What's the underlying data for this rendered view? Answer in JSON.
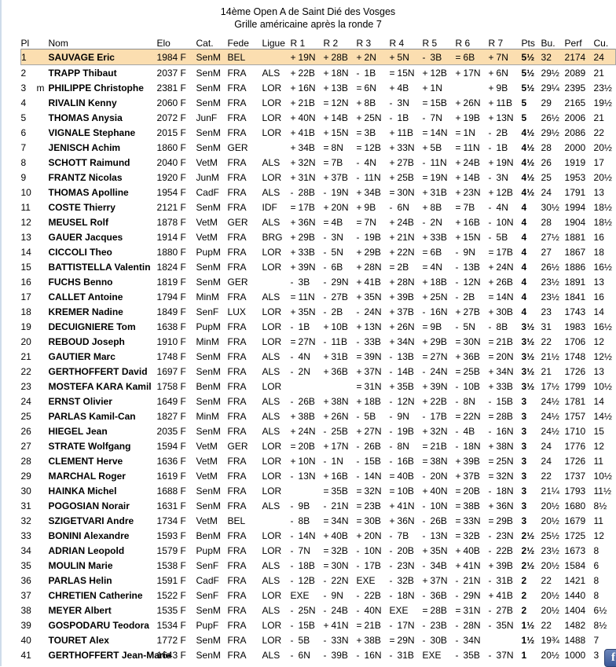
{
  "header": {
    "title_line1": "14ème Open A de Saint Dié des Vosges",
    "title_line2": "Grille américaine après la ronde 7"
  },
  "table": {
    "columns": [
      "Pl",
      "Nom",
      "Elo",
      "Cat.",
      "Fede",
      "Ligue",
      "R 1",
      "R 2",
      "R 3",
      "R 4",
      "R 5",
      "R 6",
      "R 7",
      "Pts",
      "Bu.",
      "Perf",
      "Cu."
    ],
    "highlight_color": "#fbdeb0",
    "rows": [
      {
        "pl": "1",
        "t": "",
        "nom": "SAUVAGE Eric",
        "elo": "1984 F",
        "cat": "SenM",
        "fede": "BEL",
        "ligue": "",
        "r": [
          "+ 19N",
          "+ 28B",
          "+ 2N",
          "+ 5N",
          "- 3B",
          "= 6B",
          "+ 7N"
        ],
        "pts": "5½",
        "bu": "32",
        "perf": "2174",
        "cu": "24",
        "hl": true
      },
      {
        "pl": "2",
        "t": "",
        "nom": "TRAPP Thibaut",
        "elo": "2037 F",
        "cat": "SenM",
        "fede": "FRA",
        "ligue": "ALS",
        "r": [
          "+ 22B",
          "+ 18N",
          "- 1B",
          "= 15N",
          "+ 12B",
          "+ 17N",
          "+ 6N"
        ],
        "pts": "5½",
        "bu": "29½",
        "perf": "2089",
        "cu": "21",
        "hl": false
      },
      {
        "pl": "3",
        "t": "m",
        "nom": "PHILIPPE Christophe",
        "elo": "2381 F",
        "cat": "SenM",
        "fede": "FRA",
        "ligue": "LOR",
        "r": [
          "+ 16N",
          "+ 13B",
          "= 6N",
          "+ 4B",
          "+ 1N",
          "",
          "+ 9B"
        ],
        "pts": "5½",
        "bu": "29¼",
        "perf": "2395",
        "cu": "23½",
        "hl": false
      },
      {
        "pl": "4",
        "t": "",
        "nom": "RIVALIN Kenny",
        "elo": "2060 F",
        "cat": "SenM",
        "fede": "FRA",
        "ligue": "LOR",
        "r": [
          "+ 21B",
          "= 12N",
          "+ 8B",
          "- 3N",
          "= 15B",
          "+ 26N",
          "+ 11B"
        ],
        "pts": "5",
        "bu": "29",
        "perf": "2165",
        "cu": "19½",
        "hl": false
      },
      {
        "pl": "5",
        "t": "",
        "nom": "THOMAS Anysia",
        "elo": "2072 F",
        "cat": "JunF",
        "fede": "FRA",
        "ligue": "LOR",
        "r": [
          "+ 40N",
          "+ 14B",
          "+ 25N",
          "- 1B",
          "- 7N",
          "+ 19B",
          "+ 13N"
        ],
        "pts": "5",
        "bu": "26½",
        "perf": "2006",
        "cu": "21",
        "hl": false
      },
      {
        "pl": "6",
        "t": "",
        "nom": "VIGNALE Stephane",
        "elo": "2015 F",
        "cat": "SenM",
        "fede": "FRA",
        "ligue": "LOR",
        "r": [
          "+ 41B",
          "+ 15N",
          "= 3B",
          "+ 11B",
          "= 14N",
          "= 1N",
          "- 2B"
        ],
        "pts": "4½",
        "bu": "29½",
        "perf": "2086",
        "cu": "22",
        "hl": false
      },
      {
        "pl": "7",
        "t": "",
        "nom": "JENISCH Achim",
        "elo": "1860 F",
        "cat": "SenM",
        "fede": "GER",
        "ligue": "",
        "r": [
          "+ 34B",
          "= 8N",
          "= 12B",
          "+ 33N",
          "+ 5B",
          "= 11N",
          "- 1B"
        ],
        "pts": "4½",
        "bu": "28",
        "perf": "2000",
        "cu": "20½",
        "hl": false
      },
      {
        "pl": "8",
        "t": "",
        "nom": "SCHOTT Raimund",
        "elo": "2040 F",
        "cat": "VetM",
        "fede": "FRA",
        "ligue": "ALS",
        "r": [
          "+ 32N",
          "= 7B",
          "- 4N",
          "+ 27B",
          "- 11N",
          "+ 24B",
          "+ 19N"
        ],
        "pts": "4½",
        "bu": "26",
        "perf": "1919",
        "cu": "17",
        "hl": false
      },
      {
        "pl": "9",
        "t": "",
        "nom": "FRANTZ Nicolas",
        "elo": "1920 F",
        "cat": "JunM",
        "fede": "FRA",
        "ligue": "LOR",
        "r": [
          "+ 31N",
          "+ 37B",
          "- 11N",
          "+ 25B",
          "= 19N",
          "+ 14B",
          "- 3N"
        ],
        "pts": "4½",
        "bu": "25",
        "perf": "1953",
        "cu": "20½",
        "hl": false
      },
      {
        "pl": "10",
        "t": "",
        "nom": "THOMAS Apolline",
        "elo": "1954 F",
        "cat": "CadF",
        "fede": "FRA",
        "ligue": "ALS",
        "r": [
          "- 28B",
          "- 19N",
          "+ 34B",
          "= 30N",
          "+ 31B",
          "+ 23N",
          "+ 12B"
        ],
        "pts": "4½",
        "bu": "24",
        "perf": "1791",
        "cu": "13",
        "hl": false
      },
      {
        "pl": "11",
        "t": "",
        "nom": "COSTE Thierry",
        "elo": "2121 F",
        "cat": "SenM",
        "fede": "FRA",
        "ligue": "IDF",
        "r": [
          "= 17B",
          "+ 20N",
          "+ 9B",
          "- 6N",
          "+ 8B",
          "= 7B",
          "- 4N"
        ],
        "pts": "4",
        "bu": "30½",
        "perf": "1994",
        "cu": "18½",
        "hl": false
      },
      {
        "pl": "12",
        "t": "",
        "nom": "MEUSEL Rolf",
        "elo": "1878 F",
        "cat": "VetM",
        "fede": "GER",
        "ligue": "ALS",
        "r": [
          "+ 36N",
          "= 4B",
          "= 7N",
          "+ 24B",
          "- 2N",
          "+ 16B",
          "- 10N"
        ],
        "pts": "4",
        "bu": "28",
        "perf": "1904",
        "cu": "18½",
        "hl": false
      },
      {
        "pl": "13",
        "t": "",
        "nom": "GAUER Jacques",
        "elo": "1914 F",
        "cat": "VetM",
        "fede": "FRA",
        "ligue": "BRG",
        "r": [
          "+ 29B",
          "- 3N",
          "- 19B",
          "+ 21N",
          "+ 33B",
          "+ 15N",
          "- 5B"
        ],
        "pts": "4",
        "bu": "27½",
        "perf": "1881",
        "cu": "16",
        "hl": false
      },
      {
        "pl": "14",
        "t": "",
        "nom": "CICCOLI Theo",
        "elo": "1880 F",
        "cat": "PupM",
        "fede": "FRA",
        "ligue": "LOR",
        "r": [
          "+ 33B",
          "- 5N",
          "+ 29B",
          "+ 22N",
          "= 6B",
          "- 9N",
          "= 17B"
        ],
        "pts": "4",
        "bu": "27",
        "perf": "1867",
        "cu": "18",
        "hl": false
      },
      {
        "pl": "15",
        "t": "",
        "nom": "BATTISTELLA Valentin",
        "elo": "1824 F",
        "cat": "SenM",
        "fede": "FRA",
        "ligue": "LOR",
        "r": [
          "+ 39N",
          "- 6B",
          "+ 28N",
          "= 2B",
          "= 4N",
          "- 13B",
          "+ 24N"
        ],
        "pts": "4",
        "bu": "26½",
        "perf": "1886",
        "cu": "16½",
        "hl": false
      },
      {
        "pl": "16",
        "t": "",
        "nom": "FUCHS Benno",
        "elo": "1819 F",
        "cat": "SenM",
        "fede": "GER",
        "ligue": "",
        "r": [
          "- 3B",
          "- 29N",
          "+ 41B",
          "+ 28N",
          "+ 18B",
          "- 12N",
          "+ 26B"
        ],
        "pts": "4",
        "bu": "23½",
        "perf": "1891",
        "cu": "13",
        "hl": false
      },
      {
        "pl": "17",
        "t": "",
        "nom": "CALLET Antoine",
        "elo": "1794 F",
        "cat": "MinM",
        "fede": "FRA",
        "ligue": "ALS",
        "r": [
          "= 11N",
          "- 27B",
          "+ 35N",
          "+ 39B",
          "+ 25N",
          "- 2B",
          "= 14N"
        ],
        "pts": "4",
        "bu": "23½",
        "perf": "1841",
        "cu": "16",
        "hl": false
      },
      {
        "pl": "18",
        "t": "",
        "nom": "KREMER Nadine",
        "elo": "1849 F",
        "cat": "SenF",
        "fede": "LUX",
        "ligue": "LOR",
        "r": [
          "+ 35N",
          "- 2B",
          "- 24N",
          "+ 37B",
          "- 16N",
          "+ 27B",
          "+ 30B"
        ],
        "pts": "4",
        "bu": "23",
        "perf": "1743",
        "cu": "14",
        "hl": false
      },
      {
        "pl": "19",
        "t": "",
        "nom": "DECUIGNIERE Tom",
        "elo": "1638 F",
        "cat": "PupM",
        "fede": "FRA",
        "ligue": "LOR",
        "r": [
          "- 1B",
          "+ 10B",
          "+ 13N",
          "+ 26N",
          "= 9B",
          "- 5N",
          "- 8B"
        ],
        "pts": "3½",
        "bu": "31",
        "perf": "1983",
        "cu": "16½",
        "hl": false
      },
      {
        "pl": "20",
        "t": "",
        "nom": "REBOUD Joseph",
        "elo": "1910 F",
        "cat": "MinM",
        "fede": "FRA",
        "ligue": "LOR",
        "r": [
          "= 27N",
          "- 11B",
          "- 33B",
          "+ 34N",
          "+ 29B",
          "= 30N",
          "= 21B"
        ],
        "pts": "3½",
        "bu": "22",
        "perf": "1706",
        "cu": "12",
        "hl": false
      },
      {
        "pl": "21",
        "t": "",
        "nom": "GAUTIER Marc",
        "elo": "1748 F",
        "cat": "SenM",
        "fede": "FRA",
        "ligue": "ALS",
        "r": [
          "- 4N",
          "+ 31B",
          "= 39N",
          "- 13B",
          "= 27N",
          "+ 36B",
          "= 20N"
        ],
        "pts": "3½",
        "bu": "21½",
        "perf": "1748",
        "cu": "12½",
        "hl": false
      },
      {
        "pl": "22",
        "t": "",
        "nom": "GERTHOFFERT David",
        "elo": "1697 F",
        "cat": "SenM",
        "fede": "FRA",
        "ligue": "ALS",
        "r": [
          "- 2N",
          "+ 36B",
          "+ 37N",
          "- 14B",
          "- 24N",
          "= 25B",
          "+ 34N"
        ],
        "pts": "3½",
        "bu": "21",
        "perf": "1726",
        "cu": "13",
        "hl": false
      },
      {
        "pl": "23",
        "t": "",
        "nom": "MOSTEFA KARA Kamil",
        "elo": "1758 F",
        "cat": "BenM",
        "fede": "FRA",
        "ligue": "LOR",
        "r": [
          "",
          "",
          "= 31N",
          "+ 35B",
          "+ 39N",
          "- 10B",
          "+ 33B"
        ],
        "pts": "3½",
        "bu": "17½",
        "perf": "1799",
        "cu": "10½",
        "hl": false
      },
      {
        "pl": "24",
        "t": "",
        "nom": "ERNST Olivier",
        "elo": "1649 F",
        "cat": "SenM",
        "fede": "FRA",
        "ligue": "ALS",
        "r": [
          "- 26B",
          "+ 38N",
          "+ 18B",
          "- 12N",
          "+ 22B",
          "- 8N",
          "- 15B"
        ],
        "pts": "3",
        "bu": "24½",
        "perf": "1781",
        "cu": "14",
        "hl": false
      },
      {
        "pl": "25",
        "t": "",
        "nom": "PARLAS Kamil-Can",
        "elo": "1827 F",
        "cat": "MinM",
        "fede": "FRA",
        "ligue": "ALS",
        "r": [
          "+ 38B",
          "+ 26N",
          "- 5B",
          "- 9N",
          "- 17B",
          "= 22N",
          "= 28B"
        ],
        "pts": "3",
        "bu": "24½",
        "perf": "1757",
        "cu": "14½",
        "hl": false
      },
      {
        "pl": "26",
        "t": "",
        "nom": "HIEGEL Jean",
        "elo": "2035 F",
        "cat": "SenM",
        "fede": "FRA",
        "ligue": "ALS",
        "r": [
          "+ 24N",
          "- 25B",
          "+ 27N",
          "- 19B",
          "+ 32N",
          "- 4B",
          "- 16N"
        ],
        "pts": "3",
        "bu": "24½",
        "perf": "1710",
        "cu": "15",
        "hl": false
      },
      {
        "pl": "27",
        "t": "",
        "nom": "STRATE Wolfgang",
        "elo": "1594 F",
        "cat": "VetM",
        "fede": "GER",
        "ligue": "LOR",
        "r": [
          "= 20B",
          "+ 17N",
          "- 26B",
          "- 8N",
          "= 21B",
          "- 18N",
          "+ 38N"
        ],
        "pts": "3",
        "bu": "24",
        "perf": "1776",
        "cu": "12",
        "hl": false
      },
      {
        "pl": "28",
        "t": "",
        "nom": "CLEMENT Herve",
        "elo": "1636 F",
        "cat": "VetM",
        "fede": "FRA",
        "ligue": "LOR",
        "r": [
          "+ 10N",
          "- 1N",
          "- 15B",
          "- 16B",
          "= 38N",
          "+ 39B",
          "= 25N"
        ],
        "pts": "3",
        "bu": "24",
        "perf": "1726",
        "cu": "11",
        "hl": false
      },
      {
        "pl": "29",
        "t": "",
        "nom": "MARCHAL Roger",
        "elo": "1619 F",
        "cat": "VetM",
        "fede": "FRA",
        "ligue": "LOR",
        "r": [
          "- 13N",
          "+ 16B",
          "- 14N",
          "= 40B",
          "- 20N",
          "+ 37B",
          "= 32N"
        ],
        "pts": "3",
        "bu": "22",
        "perf": "1737",
        "cu": "10½",
        "hl": false
      },
      {
        "pl": "30",
        "t": "",
        "nom": "HAINKA Michel",
        "elo": "1688 F",
        "cat": "SenM",
        "fede": "FRA",
        "ligue": "LOR",
        "r": [
          "",
          "= 35B",
          "= 32N",
          "= 10B",
          "+ 40N",
          "= 20B",
          "- 18N"
        ],
        "pts": "3",
        "bu": "21¼",
        "perf": "1793",
        "cu": "11½",
        "hl": false
      },
      {
        "pl": "31",
        "t": "",
        "nom": "POGOSIAN Norair",
        "elo": "1631 F",
        "cat": "SenM",
        "fede": "FRA",
        "ligue": "ALS",
        "r": [
          "- 9B",
          "- 21N",
          "= 23B",
          "+ 41N",
          "- 10N",
          "= 38B",
          "+ 36N"
        ],
        "pts": "3",
        "bu": "20½",
        "perf": "1680",
        "cu": "8½",
        "hl": false
      },
      {
        "pl": "32",
        "t": "",
        "nom": "SZIGETVARI Andre",
        "elo": "1734 F",
        "cat": "VetM",
        "fede": "BEL",
        "ligue": "",
        "r": [
          "- 8B",
          "= 34N",
          "= 30B",
          "+ 36N",
          "- 26B",
          "= 33N",
          "= 29B"
        ],
        "pts": "3",
        "bu": "20½",
        "perf": "1679",
        "cu": "11",
        "hl": false
      },
      {
        "pl": "33",
        "t": "",
        "nom": "BONINI Alexandre",
        "elo": "1593 F",
        "cat": "BenM",
        "fede": "FRA",
        "ligue": "LOR",
        "r": [
          "- 14N",
          "+ 40B",
          "+ 20N",
          "- 7B",
          "- 13N",
          "= 32B",
          "- 23N"
        ],
        "pts": "2½",
        "bu": "25½",
        "perf": "1725",
        "cu": "12",
        "hl": false
      },
      {
        "pl": "34",
        "t": "",
        "nom": "ADRIAN Leopold",
        "elo": "1579 F",
        "cat": "PupM",
        "fede": "FRA",
        "ligue": "LOR",
        "r": [
          "- 7N",
          "= 32B",
          "- 10N",
          "- 20B",
          "+ 35N",
          "+ 40B",
          "- 22B"
        ],
        "pts": "2½",
        "bu": "23½",
        "perf": "1673",
        "cu": "8",
        "hl": false
      },
      {
        "pl": "35",
        "t": "",
        "nom": "MOULIN Marie",
        "elo": "1538 F",
        "cat": "SenF",
        "fede": "FRA",
        "ligue": "ALS",
        "r": [
          "- 18B",
          "= 30N",
          "- 17B",
          "- 23N",
          "- 34B",
          "+ 41N",
          "+ 39B"
        ],
        "pts": "2½",
        "bu": "20½",
        "perf": "1584",
        "cu": "6",
        "hl": false
      },
      {
        "pl": "36",
        "t": "",
        "nom": "PARLAS Helin",
        "elo": "1591 F",
        "cat": "CadF",
        "fede": "FRA",
        "ligue": "ALS",
        "r": [
          "- 12B",
          "- 22N",
          "EXE",
          "- 32B",
          "+ 37N",
          "- 21N",
          "- 31B"
        ],
        "pts": "2",
        "bu": "22",
        "perf": "1421",
        "cu": "8",
        "hl": false
      },
      {
        "pl": "37",
        "t": "",
        "nom": "CHRETIEN Catherine",
        "elo": "1522 F",
        "cat": "SenF",
        "fede": "FRA",
        "ligue": "LOR",
        "r": [
          "EXE",
          "- 9N",
          "- 22B",
          "- 18N",
          "- 36B",
          "- 29N",
          "+ 41B"
        ],
        "pts": "2",
        "bu": "20½",
        "perf": "1440",
        "cu": "8",
        "hl": false
      },
      {
        "pl": "38",
        "t": "",
        "nom": "MEYER Albert",
        "elo": "1535 F",
        "cat": "SenM",
        "fede": "FRA",
        "ligue": "ALS",
        "r": [
          "- 25N",
          "- 24B",
          "- 40N",
          "EXE",
          "= 28B",
          "= 31N",
          "- 27B"
        ],
        "pts": "2",
        "bu": "20½",
        "perf": "1404",
        "cu": "6½",
        "hl": false
      },
      {
        "pl": "39",
        "t": "",
        "nom": "GOSPODARU Teodora",
        "elo": "1534 F",
        "cat": "PupF",
        "fede": "FRA",
        "ligue": "LOR",
        "r": [
          "- 15B",
          "+ 41N",
          "= 21B",
          "- 17N",
          "- 23B",
          "- 28N",
          "- 35N"
        ],
        "pts": "1½",
        "bu": "22",
        "perf": "1482",
        "cu": "8½",
        "hl": false
      },
      {
        "pl": "40",
        "t": "",
        "nom": "TOURET Alex",
        "elo": "1772 F",
        "cat": "SenM",
        "fede": "FRA",
        "ligue": "LOR",
        "r": [
          "- 5B",
          "- 33N",
          "+ 38B",
          "= 29N",
          "- 30B",
          "- 34N",
          ""
        ],
        "pts": "1½",
        "bu": "19¾",
        "perf": "1488",
        "cu": "7",
        "hl": false
      },
      {
        "pl": "41",
        "t": "",
        "nom": "GERTHOFFERT Jean-Marie",
        "elo": "1643 F",
        "cat": "SenM",
        "fede": "FRA",
        "ligue": "ALS",
        "r": [
          "- 6N",
          "- 39B",
          "- 16N",
          "- 31B",
          "EXE",
          "- 35B",
          "- 37N"
        ],
        "pts": "1",
        "bu": "20½",
        "perf": "1000",
        "cu": "3",
        "hl": false
      }
    ]
  },
  "facebook_icon": {
    "label": "f",
    "color": "#3b5998"
  }
}
